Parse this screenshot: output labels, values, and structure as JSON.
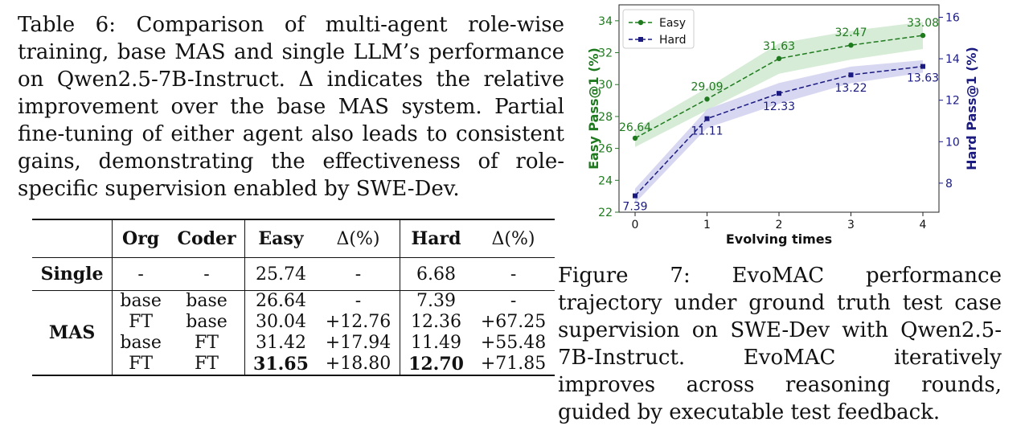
{
  "table": {
    "caption": "Table 6: Comparison of multi-agent role-wise training, base MAS and single LLM’s performance on Qwen2.5-7B-Instruct. Δ indicates the relative improvement over the base MAS system. Partial fine-tuning of either agent also leads to consistent gains, demonstrating the effectiveness of role-specific supervision enabled by SWE-Dev.",
    "headers": [
      "",
      "Org",
      "Coder",
      "Easy",
      "Δ(%)",
      "Hard",
      "Δ(%)"
    ],
    "single": {
      "label": "Single",
      "org": "-",
      "coder": "-",
      "easy": "25.74",
      "easy_delta": "-",
      "hard": "6.68",
      "hard_delta": "-"
    },
    "mas_label": "MAS",
    "mas_rows": [
      {
        "org": "base",
        "coder": "base",
        "easy": "26.64",
        "easy_delta": "-",
        "hard": "7.39",
        "hard_delta": "-"
      },
      {
        "org": "FT",
        "coder": "base",
        "easy": "30.04",
        "easy_delta": "+12.76",
        "hard": "12.36",
        "hard_delta": "+67.25"
      },
      {
        "org": "base",
        "coder": "FT",
        "easy": "31.42",
        "easy_delta": "+17.94",
        "hard": "11.49",
        "hard_delta": "+55.48"
      },
      {
        "org": "FT",
        "coder": "FT",
        "easy": "31.65",
        "easy_delta": "+18.80",
        "hard": "12.70",
        "hard_delta": "+71.85"
      }
    ]
  },
  "chart_data": {
    "type": "line",
    "x": [
      0,
      1,
      2,
      3,
      4
    ],
    "xlabel": "Evolving times",
    "ylabel_left": "Easy Pass@1 (%)",
    "ylabel_right": "Hard Pass@1 (%)",
    "ylim_left": [
      22,
      35
    ],
    "yticks_left": [
      22,
      24,
      26,
      28,
      30,
      32,
      34
    ],
    "ylim_right": [
      6.6,
      16.6
    ],
    "yticks_right": [
      8,
      10,
      12,
      14,
      16
    ],
    "legend_position": "top-left",
    "series": [
      {
        "name": "Easy",
        "axis": "left",
        "color": "#1f7a1f",
        "band_color": "#c8e6c8",
        "values": [
          26.64,
          29.09,
          31.63,
          32.47,
          33.08
        ],
        "labels": [
          "26.64",
          "29.09",
          "31.63",
          "32.47",
          "33.08"
        ]
      },
      {
        "name": "Hard",
        "axis": "right",
        "color": "#1a1a80",
        "band_color": "#c9c9ee",
        "values": [
          7.39,
          11.11,
          12.33,
          13.22,
          13.63
        ],
        "labels": [
          "7.39",
          "11.11",
          "12.33",
          "13.22",
          "13.63"
        ]
      }
    ]
  },
  "figure": {
    "caption": "Figure 7: EvoMAC performance trajectory under ground truth test case supervision on SWE-Dev with Qwen2.5-7B-Instruct. EvoMAC iteratively improves across reasoning rounds, guided by executable test feedback."
  }
}
